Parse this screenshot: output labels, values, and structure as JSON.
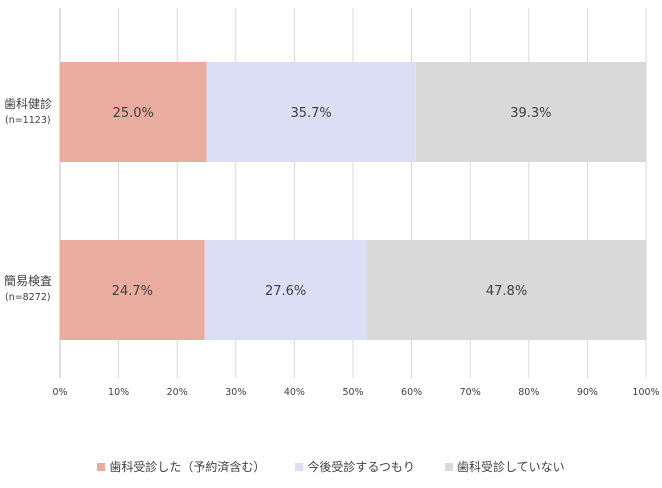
{
  "chart_data": {
    "type": "bar",
    "orientation": "horizontal",
    "stacked": true,
    "categories": [
      {
        "name": "歯科健診",
        "n": "(n=1123)"
      },
      {
        "name": "簡易検査",
        "n": "(n=8272)"
      }
    ],
    "series": [
      {
        "name": "歯科受診した（予約済含む）",
        "values": [
          25.0,
          24.7
        ],
        "labels": [
          "25.0%",
          "24.7%"
        ],
        "color": "#e9ada0"
      },
      {
        "name": "今後受診するつもり",
        "values": [
          35.7,
          27.6
        ],
        "labels": [
          "35.7%",
          "27.6%"
        ],
        "color": "#dadff6"
      },
      {
        "name": "歯科受診していない",
        "values": [
          39.3,
          47.8
        ],
        "labels": [
          "39.3%",
          "47.8%"
        ],
        "color": "#d9d9d9"
      }
    ],
    "xlim": [
      0,
      100
    ],
    "xticks": [
      "0%",
      "10%",
      "20%",
      "30%",
      "40%",
      "50%",
      "60%",
      "70%",
      "80%",
      "90%",
      "100%"
    ],
    "grid": true,
    "legend": "bottom",
    "colors": {
      "gridline": "#d9d9d9",
      "axis": "#bfbfbf",
      "text": "#404040"
    }
  }
}
